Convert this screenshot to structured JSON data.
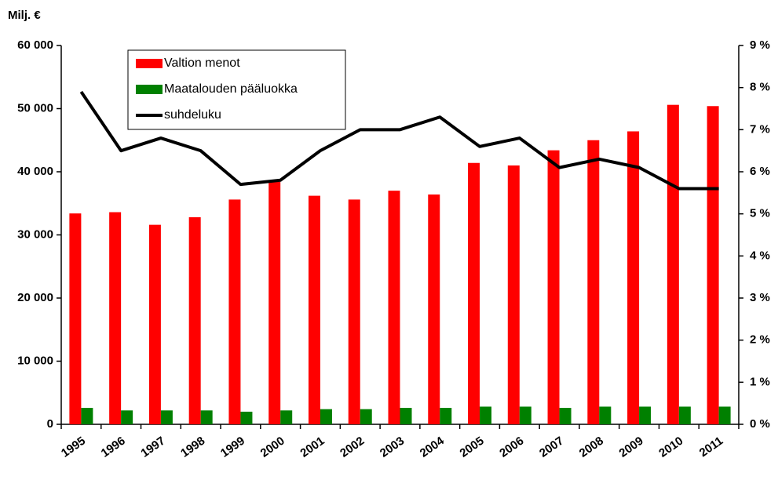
{
  "chart_data": {
    "type": "bar-line",
    "y_axis_label": "Milj. €",
    "categories": [
      "1995",
      "1996",
      "1997",
      "1998",
      "1999",
      "2000",
      "2001",
      "2002",
      "2003",
      "2004",
      "2005",
      "2006",
      "2007",
      "2008",
      "2009",
      "2010",
      "2011"
    ],
    "series": [
      {
        "name": "Valtion menot",
        "color": "#ff0000",
        "type": "bar",
        "values": [
          33400,
          33600,
          31600,
          32800,
          35600,
          38400,
          36200,
          35600,
          37000,
          36400,
          41400,
          41000,
          43400,
          45000,
          46400,
          50600,
          50400
        ]
      },
      {
        "name": "Maatalouden pääluokka",
        "color": "#008000",
        "type": "bar",
        "values": [
          2600,
          2200,
          2200,
          2200,
          2000,
          2200,
          2400,
          2400,
          2600,
          2600,
          2800,
          2800,
          2600,
          2800,
          2800,
          2800,
          2800
        ]
      },
      {
        "name": "suhdeluku",
        "color": "#000000",
        "type": "line",
        "axis": "y2",
        "values": [
          7.9,
          6.5,
          6.8,
          6.5,
          5.7,
          5.8,
          6.5,
          7.0,
          7.0,
          7.3,
          6.6,
          6.8,
          6.1,
          6.3,
          6.1,
          5.6,
          5.6
        ]
      }
    ],
    "ylim": [
      0,
      60000
    ],
    "yticks": [
      0,
      {
        "value": 10000,
        "label": "10 000"
      },
      {
        "value": 20000,
        "label": "20 000"
      },
      {
        "value": 30000,
        "label": "30 000"
      },
      {
        "value": 40000,
        "label": "40 000"
      },
      {
        "value": 50000,
        "label": "50 000"
      },
      {
        "value": 60000,
        "label": "60 000"
      }
    ],
    "y2lim": [
      0,
      9
    ],
    "y2ticks": [
      {
        "value": 0,
        "label": "0 %"
      },
      {
        "value": 1,
        "label": "1 %"
      },
      {
        "value": 2,
        "label": "2 %"
      },
      {
        "value": 3,
        "label": "3 %"
      },
      {
        "value": 4,
        "label": "4 %"
      },
      {
        "value": 5,
        "label": "5 %"
      },
      {
        "value": 6,
        "label": "6 %"
      },
      {
        "value": 7,
        "label": "7 %"
      },
      {
        "value": 8,
        "label": "8 %"
      },
      {
        "value": 9,
        "label": "9 %"
      }
    ],
    "legend": "upper left",
    "grid": false
  }
}
